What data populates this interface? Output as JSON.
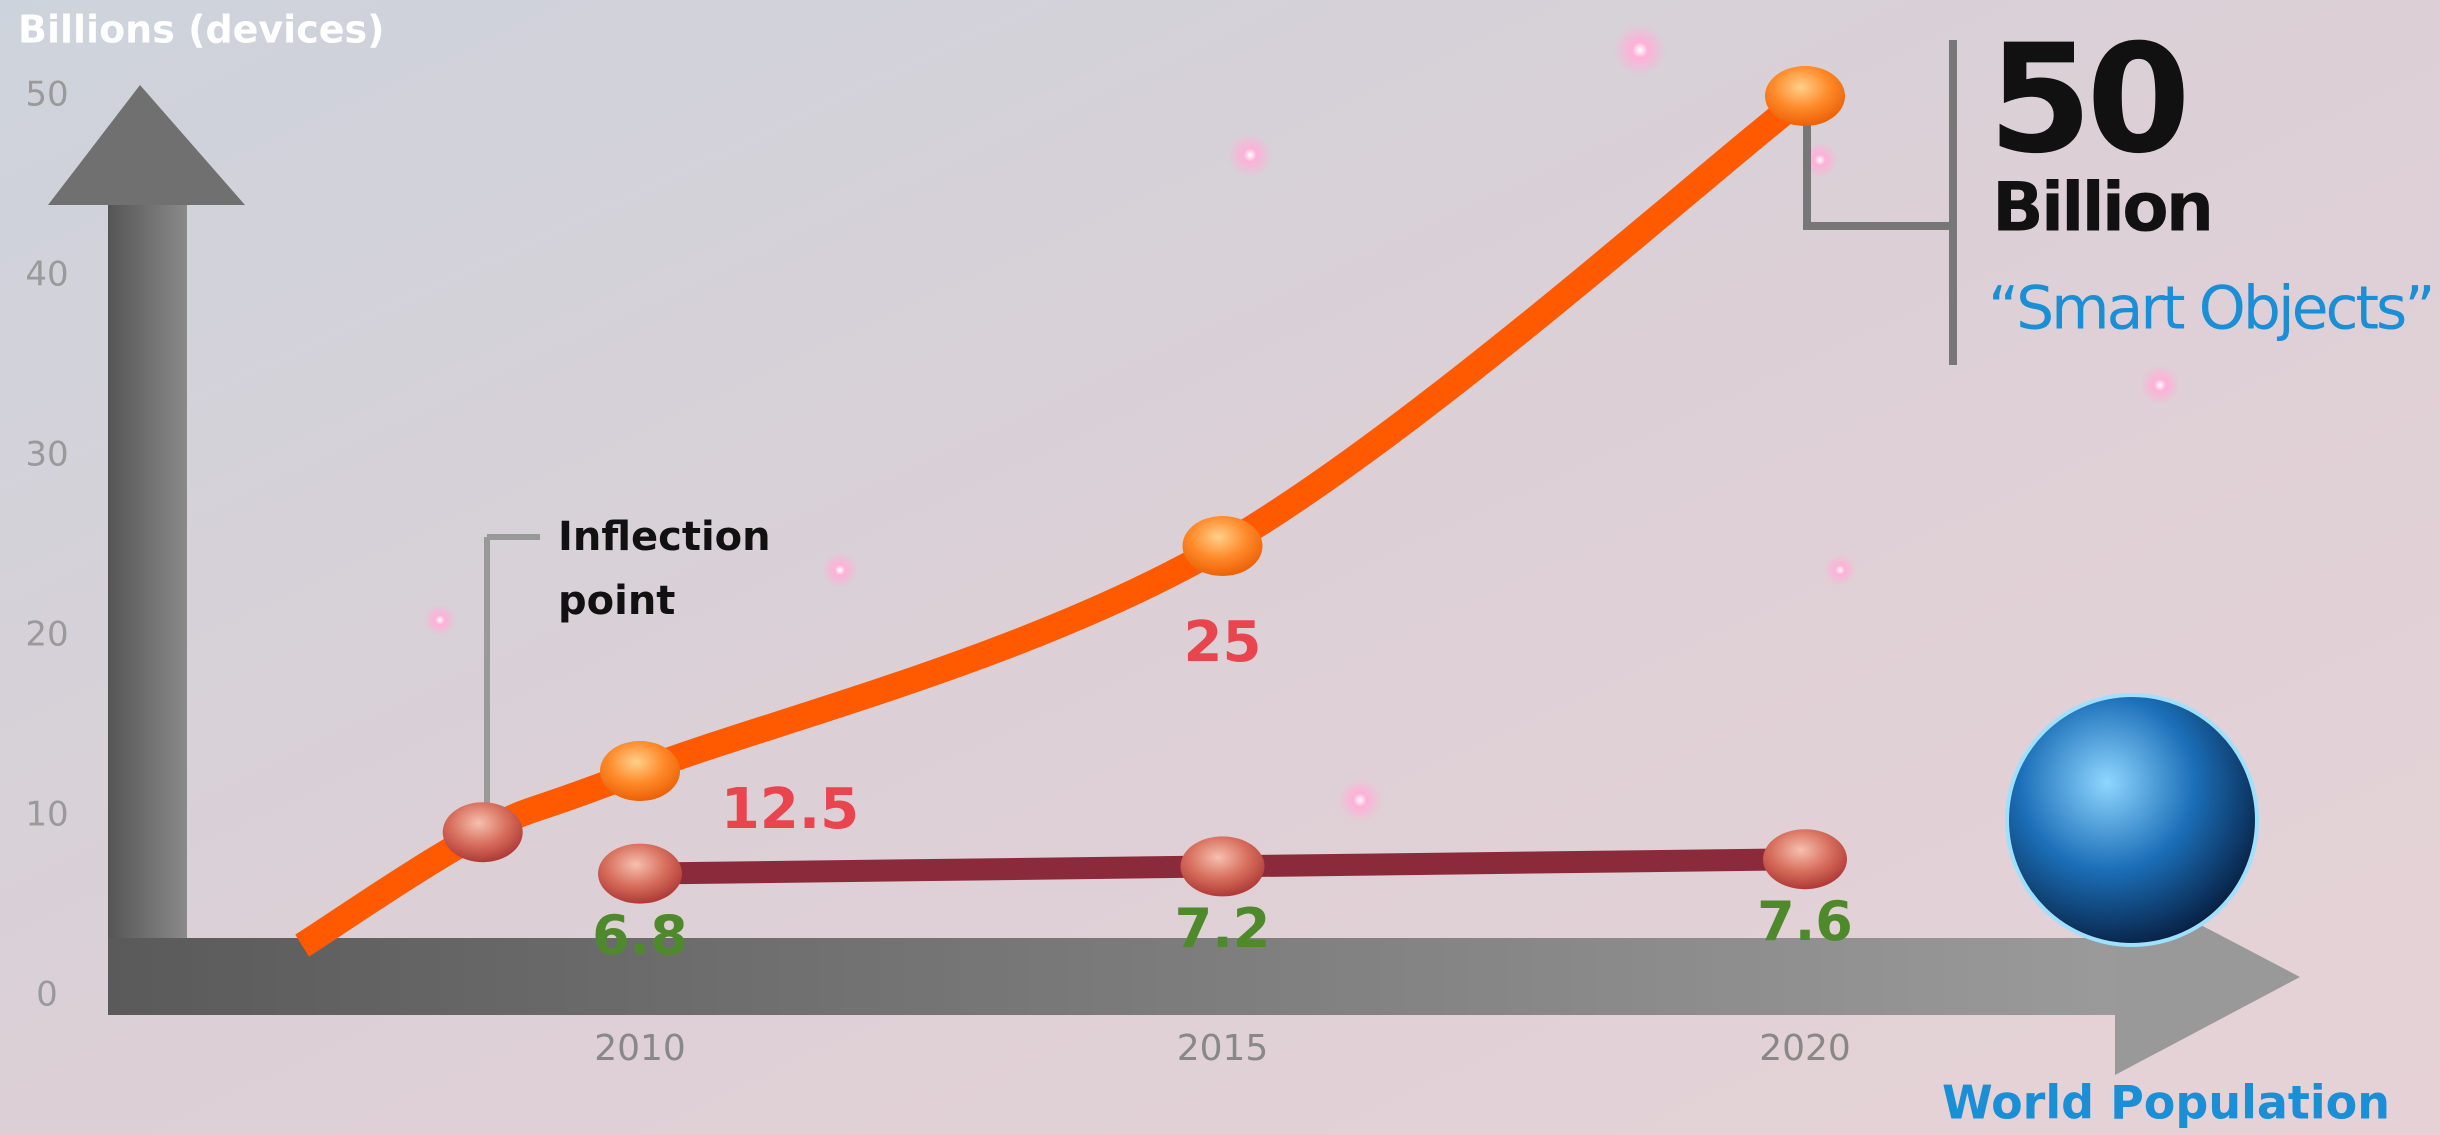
{
  "chart_data": {
    "type": "line",
    "y_label": "Billions  (devices)",
    "xlim": [
      2006,
      2023
    ],
    "xticks": [
      2010,
      2015,
      2020
    ],
    "ylim": [
      0,
      50
    ],
    "yticks": [
      0,
      10,
      20,
      30,
      40,
      50
    ],
    "series": [
      {
        "name": "“Smart Objects”",
        "color": "#ff5a00",
        "label_color": "#e8454f",
        "x": [
          2007.1,
          2008.65,
          2010,
          2015,
          2020
        ],
        "values": [
          2.8,
          9.1,
          12.5,
          25,
          50
        ]
      },
      {
        "name": "World Population",
        "color": "#8b2a3a",
        "label_color": "#4e8a2c",
        "x": [
          2010,
          2015,
          2020
        ],
        "values": [
          6.8,
          7.2,
          7.6
        ]
      }
    ],
    "headline_unit": "Billion",
    "annotation": "Inflection point"
  }
}
